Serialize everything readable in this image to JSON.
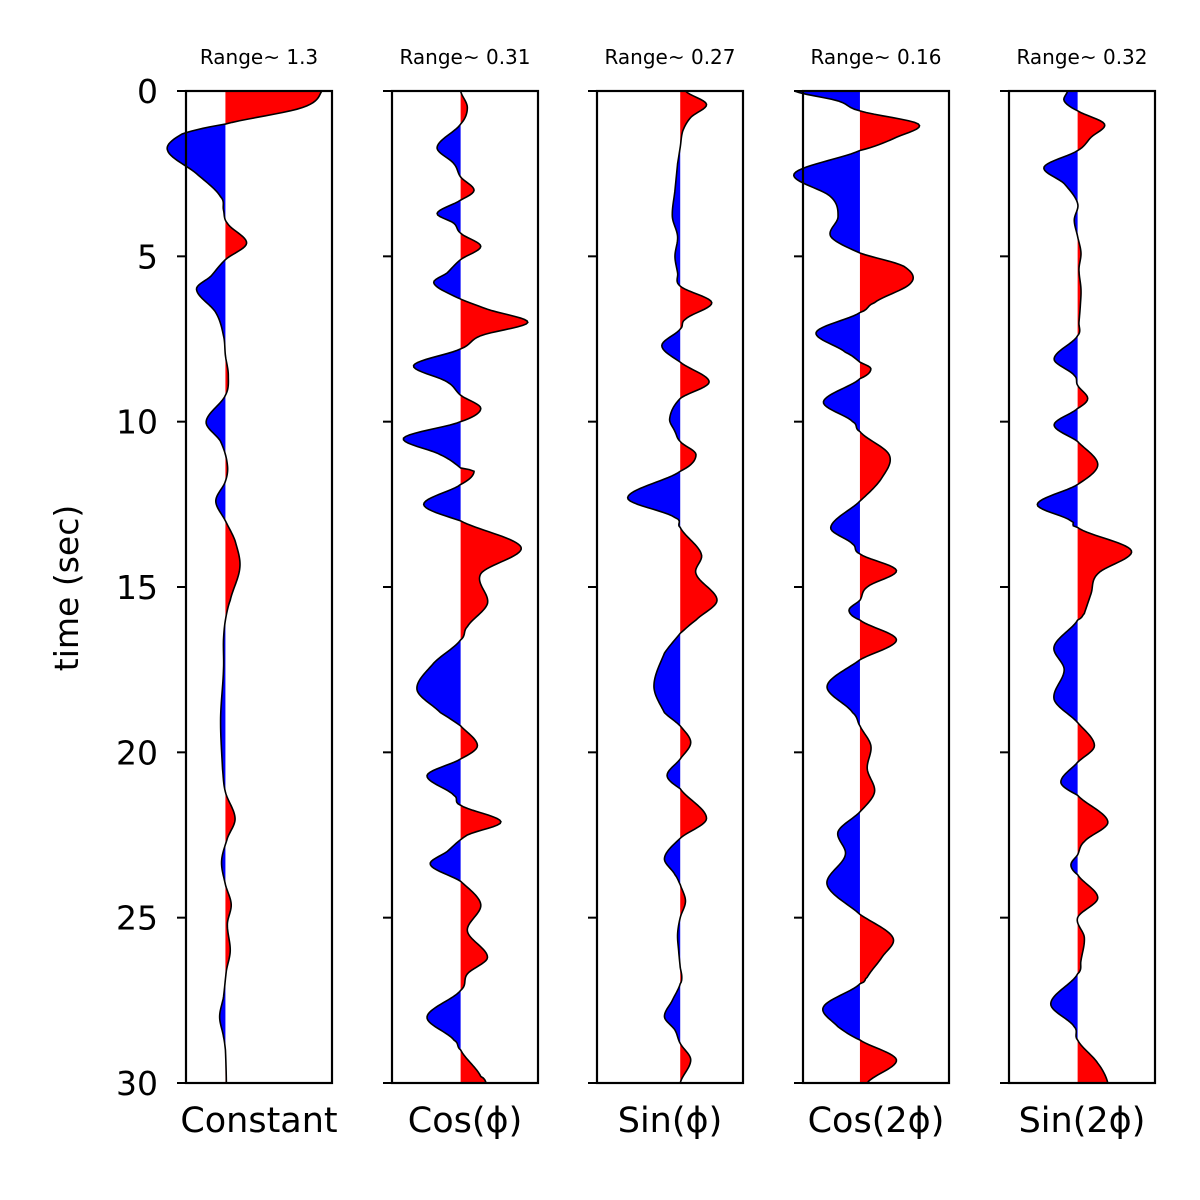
{
  "chart_data": {
    "type": "area",
    "ylabel": "time (sec)",
    "ylim": [
      30,
      0
    ],
    "yticks": [
      0,
      5,
      10,
      15,
      20,
      25,
      30
    ],
    "colors": {
      "positive": "#ff0000",
      "negative": "#0000ff",
      "outline": "#000000"
    },
    "panels": [
      {
        "title": "Range~ 1.3",
        "xlabel": "Constant",
        "baseline": 0.27,
        "scale": 0.66,
        "points": [
          [
            0,
            1.0
          ],
          [
            0.5,
            0.8
          ],
          [
            1.0,
            0.0
          ],
          [
            1.3,
            -0.45
          ],
          [
            1.8,
            -0.6
          ],
          [
            2.5,
            -0.3
          ],
          [
            3.2,
            -0.05
          ],
          [
            3.6,
            -0.02
          ],
          [
            4.0,
            0.02
          ],
          [
            4.6,
            0.22
          ],
          [
            5.1,
            0.0
          ],
          [
            5.6,
            -0.15
          ],
          [
            6.0,
            -0.3
          ],
          [
            6.7,
            -0.1
          ],
          [
            7.4,
            -0.02
          ],
          [
            8.0,
            0.0
          ],
          [
            8.6,
            0.03
          ],
          [
            9.2,
            0.0
          ],
          [
            10.0,
            -0.2
          ],
          [
            10.6,
            -0.05
          ],
          [
            11.3,
            0.02
          ],
          [
            11.8,
            0.0
          ],
          [
            12.4,
            -0.1
          ],
          [
            13.0,
            0.0
          ],
          [
            13.6,
            0.1
          ],
          [
            14.4,
            0.15
          ],
          [
            15.4,
            0.05
          ],
          [
            16.0,
            0.0
          ],
          [
            16.6,
            -0.02
          ],
          [
            17.5,
            -0.02
          ],
          [
            19.0,
            -0.05
          ],
          [
            20.5,
            -0.03
          ],
          [
            21.2,
            0.0
          ],
          [
            22.0,
            0.1
          ],
          [
            22.6,
            0.02
          ],
          [
            23.3,
            -0.04
          ],
          [
            24.0,
            0.0
          ],
          [
            24.6,
            0.06
          ],
          [
            25.2,
            0.02
          ],
          [
            26.0,
            0.05
          ],
          [
            26.6,
            0.01
          ],
          [
            27.4,
            -0.02
          ],
          [
            28.0,
            -0.06
          ],
          [
            28.6,
            -0.02
          ],
          [
            29.0,
            0.0
          ],
          [
            30.0,
            0.01
          ]
        ]
      },
      {
        "title": "Range~ 0.31",
        "xlabel": "Cos(ϕ)",
        "baseline": 0.47,
        "scale": 0.46,
        "points": [
          [
            0,
            0.0
          ],
          [
            0.5,
            0.1
          ],
          [
            1.0,
            0.0
          ],
          [
            1.7,
            -0.35
          ],
          [
            2.2,
            -0.1
          ],
          [
            2.6,
            0.0
          ],
          [
            3.0,
            0.2
          ],
          [
            3.3,
            0.0
          ],
          [
            3.7,
            -0.35
          ],
          [
            4.0,
            -0.1
          ],
          [
            4.3,
            0.0
          ],
          [
            4.7,
            0.3
          ],
          [
            5.1,
            0.0
          ],
          [
            5.5,
            -0.2
          ],
          [
            5.8,
            -0.4
          ],
          [
            6.2,
            -0.1
          ],
          [
            6.6,
            0.4
          ],
          [
            7.0,
            1.0
          ],
          [
            7.4,
            0.3
          ],
          [
            7.8,
            0.0
          ],
          [
            8.3,
            -0.7
          ],
          [
            8.8,
            -0.2
          ],
          [
            9.2,
            0.0
          ],
          [
            9.6,
            0.3
          ],
          [
            10.0,
            0.0
          ],
          [
            10.5,
            -0.85
          ],
          [
            11.0,
            -0.3
          ],
          [
            11.4,
            0.0
          ],
          [
            11.5,
            0.2
          ],
          [
            11.9,
            0.0
          ],
          [
            12.5,
            -0.55
          ],
          [
            13.0,
            0.0
          ],
          [
            13.8,
            0.9
          ],
          [
            14.6,
            0.3
          ],
          [
            15.5,
            0.4
          ],
          [
            16.2,
            0.1
          ],
          [
            16.6,
            0.0
          ],
          [
            17.3,
            -0.4
          ],
          [
            18.1,
            -0.65
          ],
          [
            18.8,
            -0.3
          ],
          [
            19.2,
            0.0
          ],
          [
            19.8,
            0.25
          ],
          [
            20.2,
            0.0
          ],
          [
            20.7,
            -0.5
          ],
          [
            21.3,
            -0.1
          ],
          [
            21.6,
            0.0
          ],
          [
            22.1,
            0.6
          ],
          [
            22.5,
            0.1
          ],
          [
            23.0,
            -0.2
          ],
          [
            23.4,
            -0.45
          ],
          [
            23.9,
            0.0
          ],
          [
            24.6,
            0.3
          ],
          [
            25.4,
            0.1
          ],
          [
            26.2,
            0.4
          ],
          [
            26.7,
            0.1
          ],
          [
            27.2,
            0.0
          ],
          [
            28.0,
            -0.5
          ],
          [
            28.7,
            -0.1
          ],
          [
            29.0,
            0.0
          ],
          [
            29.8,
            0.3
          ],
          [
            30.0,
            0.38
          ]
        ]
      },
      {
        "title": "Range~ 0.27",
        "xlabel": "Sin(ϕ)",
        "baseline": 0.57,
        "scale": 0.36,
        "points": [
          [
            0,
            0.1
          ],
          [
            0.4,
            0.5
          ],
          [
            0.8,
            0.2
          ],
          [
            1.2,
            0.05
          ],
          [
            1.7,
            0.0
          ],
          [
            2.2,
            -0.05
          ],
          [
            3.0,
            -0.1
          ],
          [
            3.8,
            -0.15
          ],
          [
            4.4,
            -0.05
          ],
          [
            5.0,
            -0.1
          ],
          [
            5.5,
            -0.05
          ],
          [
            5.9,
            0.0
          ],
          [
            6.4,
            0.6
          ],
          [
            6.9,
            0.1
          ],
          [
            7.2,
            0.0
          ],
          [
            7.7,
            -0.35
          ],
          [
            8.2,
            0.0
          ],
          [
            8.8,
            0.55
          ],
          [
            9.3,
            0.0
          ],
          [
            9.9,
            -0.2
          ],
          [
            10.3,
            -0.1
          ],
          [
            10.6,
            0.0
          ],
          [
            11.0,
            0.3
          ],
          [
            11.5,
            0.0
          ],
          [
            12.3,
            -1.0
          ],
          [
            12.9,
            -0.1
          ],
          [
            13.2,
            0.0
          ],
          [
            14.0,
            0.4
          ],
          [
            14.6,
            0.3
          ],
          [
            15.4,
            0.7
          ],
          [
            16.0,
            0.3
          ],
          [
            16.4,
            0.0
          ],
          [
            17.0,
            -0.3
          ],
          [
            18.0,
            -0.5
          ],
          [
            18.8,
            -0.3
          ],
          [
            19.2,
            0.0
          ],
          [
            19.7,
            0.2
          ],
          [
            20.2,
            0.0
          ],
          [
            20.7,
            -0.25
          ],
          [
            21.1,
            0.0
          ],
          [
            22.0,
            0.5
          ],
          [
            22.6,
            0.0
          ],
          [
            23.2,
            -0.3
          ],
          [
            23.7,
            -0.1
          ],
          [
            24.0,
            0.0
          ],
          [
            24.5,
            0.1
          ],
          [
            25.0,
            0.0
          ],
          [
            25.5,
            -0.05
          ],
          [
            26.0,
            -0.03
          ],
          [
            26.5,
            0.0
          ],
          [
            26.8,
            0.03
          ],
          [
            27.0,
            0.0
          ],
          [
            27.5,
            -0.15
          ],
          [
            28.0,
            -0.3
          ],
          [
            28.4,
            -0.1
          ],
          [
            28.8,
            0.0
          ],
          [
            29.3,
            0.2
          ],
          [
            30.0,
            0.0
          ]
        ]
      },
      {
        "title": "Range~ 0.16",
        "xlabel": "Cos(2ϕ)",
        "baseline": 0.39,
        "scale": 0.5,
        "points": [
          [
            0,
            -0.9
          ],
          [
            0.3,
            -0.3
          ],
          [
            0.6,
            0.0
          ],
          [
            1.0,
            0.8
          ],
          [
            1.4,
            0.5
          ],
          [
            1.8,
            0.0
          ],
          [
            2.5,
            -0.9
          ],
          [
            3.2,
            -0.4
          ],
          [
            3.8,
            -0.3
          ],
          [
            4.4,
            -0.4
          ],
          [
            4.9,
            0.0
          ],
          [
            5.3,
            0.6
          ],
          [
            5.8,
            0.7
          ],
          [
            6.4,
            0.2
          ],
          [
            6.7,
            0.0
          ],
          [
            7.3,
            -0.6
          ],
          [
            7.9,
            -0.2
          ],
          [
            8.2,
            0.0
          ],
          [
            8.4,
            0.15
          ],
          [
            8.7,
            0.0
          ],
          [
            9.4,
            -0.5
          ],
          [
            10.0,
            -0.1
          ],
          [
            10.3,
            0.0
          ],
          [
            11.0,
            0.4
          ],
          [
            11.7,
            0.3
          ],
          [
            12.4,
            0.0
          ],
          [
            13.2,
            -0.4
          ],
          [
            13.7,
            -0.1
          ],
          [
            14.0,
            0.0
          ],
          [
            14.5,
            0.5
          ],
          [
            15.0,
            0.1
          ],
          [
            15.4,
            0.0
          ],
          [
            15.7,
            -0.15
          ],
          [
            16.0,
            0.0
          ],
          [
            16.6,
            0.5
          ],
          [
            17.2,
            0.0
          ],
          [
            18.0,
            -0.45
          ],
          [
            18.8,
            -0.1
          ],
          [
            19.2,
            0.0
          ],
          [
            19.8,
            0.15
          ],
          [
            20.5,
            0.1
          ],
          [
            21.2,
            0.2
          ],
          [
            21.8,
            0.0
          ],
          [
            22.4,
            -0.3
          ],
          [
            23.1,
            -0.2
          ],
          [
            24.0,
            -0.45
          ],
          [
            24.9,
            0.0
          ],
          [
            25.6,
            0.45
          ],
          [
            26.2,
            0.3
          ],
          [
            26.8,
            0.1
          ],
          [
            27.0,
            0.0
          ],
          [
            27.7,
            -0.5
          ],
          [
            28.3,
            -0.3
          ],
          [
            28.7,
            0.0
          ],
          [
            29.3,
            0.5
          ],
          [
            30.0,
            0.1
          ]
        ]
      },
      {
        "title": "Range~ 0.32",
        "xlabel": "Sin(2ϕ)",
        "baseline": 0.47,
        "scale": 0.46,
        "points": [
          [
            0,
            -0.15
          ],
          [
            0.3,
            -0.2
          ],
          [
            0.6,
            0.0
          ],
          [
            1.0,
            0.4
          ],
          [
            1.4,
            0.2
          ],
          [
            1.8,
            0.0
          ],
          [
            2.3,
            -0.5
          ],
          [
            2.8,
            -0.2
          ],
          [
            3.4,
            0.0
          ],
          [
            3.9,
            -0.05
          ],
          [
            4.4,
            0.0
          ],
          [
            4.9,
            0.05
          ],
          [
            5.4,
            0.02
          ],
          [
            6.0,
            0.05
          ],
          [
            6.5,
            0.04
          ],
          [
            7.0,
            0.02
          ],
          [
            7.4,
            0.0
          ],
          [
            8.1,
            -0.35
          ],
          [
            8.6,
            -0.05
          ],
          [
            8.9,
            0.0
          ],
          [
            9.3,
            0.15
          ],
          [
            9.6,
            0.0
          ],
          [
            10.1,
            -0.35
          ],
          [
            10.6,
            0.0
          ],
          [
            11.3,
            0.3
          ],
          [
            11.9,
            0.0
          ],
          [
            12.5,
            -0.6
          ],
          [
            13.0,
            -0.1
          ],
          [
            13.2,
            0.0
          ],
          [
            13.9,
            0.8
          ],
          [
            14.6,
            0.3
          ],
          [
            15.2,
            0.2
          ],
          [
            15.8,
            0.1
          ],
          [
            16.0,
            0.0
          ],
          [
            16.8,
            -0.35
          ],
          [
            17.5,
            -0.2
          ],
          [
            18.4,
            -0.35
          ],
          [
            19.1,
            0.0
          ],
          [
            19.8,
            0.25
          ],
          [
            20.3,
            0.0
          ],
          [
            20.9,
            -0.25
          ],
          [
            21.3,
            0.0
          ],
          [
            22.1,
            0.45
          ],
          [
            22.7,
            0.1
          ],
          [
            23.1,
            0.0
          ],
          [
            23.4,
            -0.1
          ],
          [
            23.7,
            0.0
          ],
          [
            24.4,
            0.3
          ],
          [
            25.0,
            0.0
          ],
          [
            25.6,
            0.1
          ],
          [
            26.3,
            0.05
          ],
          [
            26.7,
            0.0
          ],
          [
            27.6,
            -0.4
          ],
          [
            28.3,
            -0.05
          ],
          [
            28.7,
            0.0
          ],
          [
            29.4,
            0.3
          ],
          [
            30.0,
            0.45
          ]
        ]
      }
    ]
  }
}
